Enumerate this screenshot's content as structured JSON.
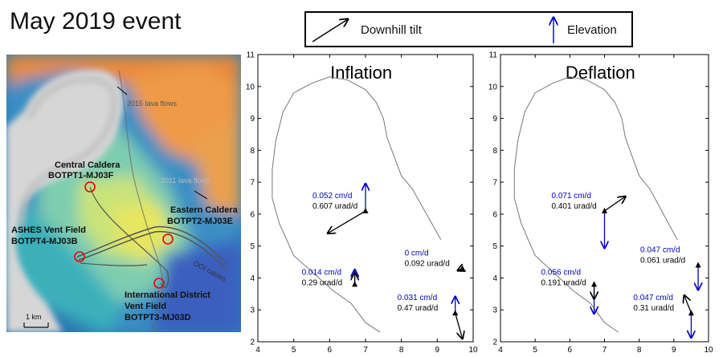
{
  "title": "May 2019 event",
  "legend": {
    "tilt_label": "Downhill tilt",
    "elevation_label": "Elevation"
  },
  "map": {
    "labels": {
      "lava_2015": "2015 lava flows",
      "lava_2011": "2011 lava flows",
      "central_caldera": "Central Caldera",
      "central_caldera_id": "BOTPT1-MJ03F",
      "eastern_caldera": "Eastern Caldera",
      "eastern_caldera_id": "BOTPT2-MJ03E",
      "ashes": "ASHES Vent Field",
      "ashes_id": "BOTPT4-MJ03B",
      "intl1": "International District",
      "intl2": "Vent Field",
      "intl_id": "BOTPT3-MJ03D",
      "cables": "OOI cables",
      "scale": "1 km"
    }
  },
  "chart_data": [
    {
      "type": "scatter",
      "title": "Inflation",
      "xlim": [
        4,
        10
      ],
      "ylim": [
        2,
        11
      ],
      "xticks": [
        "4",
        "5",
        "6",
        "7",
        "8",
        "9",
        "10"
      ],
      "yticks": [
        "2",
        "3",
        "4",
        "5",
        "6",
        "7",
        "8",
        "9",
        "10",
        "11"
      ],
      "stations": [
        {
          "x": 7.0,
          "y": 6.1,
          "elev_label": "0.052 cm/d",
          "tilt_label": "0.607 urad/d",
          "elev": 0.052,
          "elev_dir": "up",
          "tilt": [
            -1.05,
            -0.7
          ]
        },
        {
          "x": 6.7,
          "y": 3.8,
          "elev_label": "0.014 cm/d",
          "tilt_label": "0.29 urad/d",
          "elev": 0.014,
          "elev_dir": "up",
          "tilt": [
            0.0,
            0.35
          ]
        },
        {
          "x": 9.7,
          "y": 4.3,
          "elev_label": "0 cm/d",
          "tilt_label": "0.092 urad/d",
          "elev": 0,
          "elev_dir": "up",
          "tilt": [
            -0.13,
            -0.07
          ]
        },
        {
          "x": 9.5,
          "y": 2.9,
          "elev_label": "0.031 cm/d",
          "tilt_label": "0.47 urad/d",
          "elev": 0.031,
          "elev_dir": "up",
          "tilt": [
            0.2,
            -0.8
          ]
        }
      ]
    },
    {
      "type": "scatter",
      "title": "Deflation",
      "xlim": [
        4,
        10
      ],
      "ylim": [
        2,
        11
      ],
      "xticks": [
        "4",
        "5",
        "6",
        "7",
        "8",
        "9",
        "10"
      ],
      "yticks": [
        "2",
        "3",
        "4",
        "5",
        "6",
        "7",
        "8",
        "9",
        "10",
        "11"
      ],
      "stations": [
        {
          "x": 7.0,
          "y": 6.1,
          "elev_label": "0.071 cm/d",
          "tilt_label": "0.401 urad/d",
          "elev": 0.071,
          "elev_dir": "down",
          "tilt": [
            0.6,
            0.45
          ]
        },
        {
          "x": 6.7,
          "y": 3.8,
          "elev_label": "0.056 cm/d",
          "tilt_label": "0.191 urad/d",
          "elev": 0.056,
          "elev_dir": "down",
          "tilt": [
            0.0,
            -0.45
          ]
        },
        {
          "x": 9.7,
          "y": 4.4,
          "elev_label": "0.047 cm/d",
          "tilt_label": "0.061 urad/d",
          "elev": 0.047,
          "elev_dir": "down",
          "tilt": [
            0.0,
            0.0
          ]
        },
        {
          "x": 9.5,
          "y": 2.9,
          "elev_label": "0.047 cm/d",
          "tilt_label": "0.31 urad/d",
          "elev": 0.047,
          "elev_dir": "down",
          "tilt": [
            -0.2,
            0.55
          ]
        }
      ]
    }
  ]
}
